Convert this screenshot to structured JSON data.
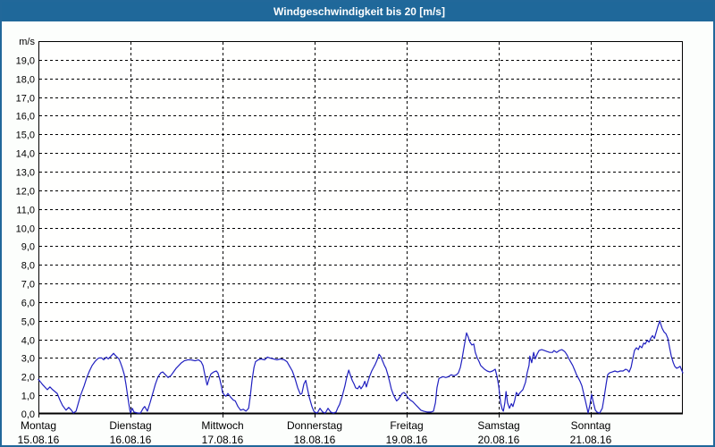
{
  "titlebar": {
    "title": "Windgeschwindigkeit bis 20 [m/s]"
  },
  "colors": {
    "titlebar_bg": "#1f689a",
    "titlebar_text": "#ffffff",
    "frame_border": "#21689a",
    "page_bg": "#fcfefc",
    "plot_bg": "#fffffe",
    "grid": "#000000",
    "line": "#2020c0"
  },
  "chart_data": {
    "type": "line",
    "title": "Windgeschwindigkeit bis 20 [m/s]",
    "ylabel": "m/s",
    "ylim": [
      0,
      20
    ],
    "ytick_step": 1,
    "ytick_labels": [
      "0,0",
      "1,0",
      "2,0",
      "3,0",
      "4,0",
      "5,0",
      "6,0",
      "7,0",
      "8,0",
      "9,0",
      "10,0",
      "11,0",
      "12,0",
      "13,0",
      "14,0",
      "15,0",
      "16,0",
      "17,0",
      "18,0",
      "19,0"
    ],
    "grid": true,
    "x_axis": {
      "unit": "hours since Monday 00:00",
      "range": [
        0,
        168
      ],
      "day_ticks": [
        {
          "name": "Montag",
          "date": "15.08.16"
        },
        {
          "name": "Dienstag",
          "date": "16.08.16"
        },
        {
          "name": "Mittwoch",
          "date": "17.08.16"
        },
        {
          "name": "Donnerstag",
          "date": "18.08.16"
        },
        {
          "name": "Freitag",
          "date": "19.08.16"
        },
        {
          "name": "Samstag",
          "date": "20.08.16"
        },
        {
          "name": "Sonntag",
          "date": "21.08.16"
        }
      ]
    },
    "series": [
      {
        "name": "Windgeschwindigkeit",
        "color": "#2020c0",
        "points": [
          [
            0,
            1.85
          ],
          [
            1.2,
            1.55
          ],
          [
            2.3,
            1.3
          ],
          [
            3,
            1.45
          ],
          [
            3.7,
            1.3
          ],
          [
            4.9,
            1.1
          ],
          [
            5.6,
            0.75
          ],
          [
            6.3,
            0.45
          ],
          [
            7.2,
            0.2
          ],
          [
            7.9,
            0.35
          ],
          [
            8.6,
            0.2
          ],
          [
            9.1,
            0.05
          ],
          [
            9.8,
            0.15
          ],
          [
            10.3,
            0.5
          ],
          [
            11,
            1
          ],
          [
            11.9,
            1.5
          ],
          [
            12.6,
            1.95
          ],
          [
            13.3,
            2.3
          ],
          [
            14,
            2.6
          ],
          [
            14.7,
            2.8
          ],
          [
            15.4,
            2.95
          ],
          [
            15.8,
            3
          ],
          [
            16.5,
            3
          ],
          [
            17,
            2.9
          ],
          [
            17.7,
            3.05
          ],
          [
            18.2,
            2.95
          ],
          [
            18.9,
            3.1
          ],
          [
            19.6,
            3.25
          ],
          [
            20,
            3.15
          ],
          [
            20.5,
            3.05
          ],
          [
            21,
            2.95
          ],
          [
            21.4,
            2.75
          ],
          [
            21.9,
            2.45
          ],
          [
            22.4,
            2.1
          ],
          [
            22.8,
            1.6
          ],
          [
            23.3,
            0.9
          ],
          [
            23.8,
            0.25
          ],
          [
            24,
            0.05
          ],
          [
            24.5,
            0.3
          ],
          [
            24.9,
            0.1
          ],
          [
            25.9,
            0.05
          ],
          [
            26.6,
            0.05
          ],
          [
            27.3,
            0.3
          ],
          [
            27.7,
            0.4
          ],
          [
            28.4,
            0.15
          ],
          [
            29.1,
            0.6
          ],
          [
            29.8,
            1.1
          ],
          [
            30.5,
            1.6
          ],
          [
            31.2,
            2
          ],
          [
            31.9,
            2.2
          ],
          [
            32.4,
            2.25
          ],
          [
            33.1,
            2.1
          ],
          [
            33.8,
            1.95
          ],
          [
            34.5,
            2.05
          ],
          [
            35.2,
            2.25
          ],
          [
            35.9,
            2.45
          ],
          [
            36.6,
            2.6
          ],
          [
            37.3,
            2.75
          ],
          [
            38,
            2.85
          ],
          [
            38.9,
            2.9
          ],
          [
            39.8,
            2.9
          ],
          [
            40.8,
            2.85
          ],
          [
            41.7,
            2.9
          ],
          [
            42.4,
            2.8
          ],
          [
            42.9,
            2.6
          ],
          [
            43.3,
            2.2
          ],
          [
            43.8,
            1.7
          ],
          [
            44,
            1.55
          ],
          [
            44.5,
            1.9
          ],
          [
            45,
            2.15
          ],
          [
            45.7,
            2.25
          ],
          [
            46.4,
            2.3
          ],
          [
            46.8,
            2.2
          ],
          [
            47.3,
            1.85
          ],
          [
            47.8,
            1.4
          ],
          [
            48,
            1.15
          ],
          [
            48.5,
            1
          ],
          [
            48.9,
            0.95
          ],
          [
            49.4,
            1.1
          ],
          [
            50.1,
            0.9
          ],
          [
            50.8,
            0.75
          ],
          [
            51.3,
            0.7
          ],
          [
            52,
            0.4
          ],
          [
            52.7,
            0.2
          ],
          [
            53.4,
            0.25
          ],
          [
            54.1,
            0.15
          ],
          [
            54.8,
            0.3
          ],
          [
            55.2,
            0.9
          ],
          [
            55.7,
            1.8
          ],
          [
            56.2,
            2.5
          ],
          [
            56.6,
            2.8
          ],
          [
            57.3,
            2.9
          ],
          [
            58,
            2.95
          ],
          [
            59,
            2.9
          ],
          [
            59.7,
            3.05
          ],
          [
            60.3,
            3
          ],
          [
            61.3,
            2.95
          ],
          [
            62.2,
            2.9
          ],
          [
            63.1,
            2.95
          ],
          [
            64.1,
            2.9
          ],
          [
            64.8,
            2.8
          ],
          [
            65.5,
            2.55
          ],
          [
            66.2,
            2.3
          ],
          [
            66.9,
            1.9
          ],
          [
            67.6,
            1.4
          ],
          [
            68.3,
            1.05
          ],
          [
            68.7,
            1.1
          ],
          [
            69.2,
            1.6
          ],
          [
            69.7,
            1.8
          ],
          [
            70.1,
            1.4
          ],
          [
            70.6,
            0.9
          ],
          [
            71.3,
            0.4
          ],
          [
            71.8,
            0.15
          ],
          [
            72,
            0.1
          ],
          [
            72.7,
            0.05
          ],
          [
            73.4,
            0.3
          ],
          [
            74.1,
            0.1
          ],
          [
            74.8,
            0.05
          ],
          [
            75.5,
            0.3
          ],
          [
            76.2,
            0.1
          ],
          [
            76.9,
            0.05
          ],
          [
            77.6,
            0.1
          ],
          [
            78.1,
            0.35
          ],
          [
            78.5,
            0.5
          ],
          [
            79.2,
            0.95
          ],
          [
            79.9,
            1.5
          ],
          [
            80.4,
            2
          ],
          [
            80.9,
            2.35
          ],
          [
            81.3,
            2.1
          ],
          [
            81.8,
            1.8
          ],
          [
            82.3,
            1.6
          ],
          [
            82.7,
            1.4
          ],
          [
            83.2,
            1.35
          ],
          [
            83.7,
            1.5
          ],
          [
            84.1,
            1.35
          ],
          [
            84.6,
            1.5
          ],
          [
            85.1,
            1.75
          ],
          [
            85.5,
            1.45
          ],
          [
            86,
            1.8
          ],
          [
            86.4,
            2.05
          ],
          [
            86.9,
            2.3
          ],
          [
            87.4,
            2.5
          ],
          [
            87.8,
            2.65
          ],
          [
            88.3,
            2.9
          ],
          [
            88.8,
            3.2
          ],
          [
            89.2,
            3.1
          ],
          [
            89.7,
            2.85
          ],
          [
            90.2,
            2.6
          ],
          [
            90.6,
            2.45
          ],
          [
            91.1,
            2.1
          ],
          [
            91.6,
            1.7
          ],
          [
            92,
            1.35
          ],
          [
            92.5,
            1.05
          ],
          [
            93,
            0.85
          ],
          [
            93.4,
            0.7
          ],
          [
            93.9,
            0.8
          ],
          [
            94.4,
            0.95
          ],
          [
            94.8,
            1.1
          ],
          [
            95.3,
            1.15
          ],
          [
            95.8,
            1.05
          ],
          [
            96.2,
            0.9
          ],
          [
            96.9,
            0.75
          ],
          [
            97.6,
            0.65
          ],
          [
            98.3,
            0.5
          ],
          [
            99,
            0.35
          ],
          [
            99.7,
            0.2
          ],
          [
            100.4,
            0.15
          ],
          [
            101.4,
            0.1
          ],
          [
            102.3,
            0.1
          ],
          [
            103,
            0.15
          ],
          [
            103.5,
            0.6
          ],
          [
            103.9,
            1.4
          ],
          [
            104.4,
            1.9
          ],
          [
            104.9,
            1.95
          ],
          [
            105.5,
            2
          ],
          [
            106.2,
            1.95
          ],
          [
            106.9,
            2
          ],
          [
            107.6,
            2.1
          ],
          [
            108.3,
            2.05
          ],
          [
            109,
            2.1
          ],
          [
            109.5,
            2.2
          ],
          [
            110,
            2.5
          ],
          [
            110.4,
            2.9
          ],
          [
            110.9,
            3.5
          ],
          [
            111.4,
            4.1
          ],
          [
            111.6,
            4.35
          ],
          [
            112.1,
            4.1
          ],
          [
            112.5,
            3.85
          ],
          [
            113,
            3.7
          ],
          [
            113.5,
            3.75
          ],
          [
            113.9,
            3.3
          ],
          [
            114.4,
            3
          ],
          [
            114.9,
            2.8
          ],
          [
            115.3,
            2.6
          ],
          [
            115.8,
            2.5
          ],
          [
            116.3,
            2.4
          ],
          [
            117,
            2.3
          ],
          [
            117.7,
            2.25
          ],
          [
            118.4,
            2.3
          ],
          [
            119.1,
            2.4
          ],
          [
            119.5,
            2.05
          ],
          [
            120,
            1.5
          ],
          [
            120.5,
            0.6
          ],
          [
            120.9,
            0.25
          ],
          [
            121.2,
            0.15
          ],
          [
            121.6,
            0.6
          ],
          [
            121.9,
            1.2
          ],
          [
            122.3,
            0.6
          ],
          [
            122.8,
            0.3
          ],
          [
            123.3,
            0.55
          ],
          [
            123.7,
            0.4
          ],
          [
            124.2,
            0.75
          ],
          [
            124.6,
            1.15
          ],
          [
            125.1,
            1
          ],
          [
            125.6,
            1.15
          ],
          [
            126.3,
            1.3
          ],
          [
            127,
            1.7
          ],
          [
            127.4,
            2.2
          ],
          [
            127.9,
            2.6
          ],
          [
            128.1,
            3.1
          ],
          [
            128.6,
            2.75
          ],
          [
            129.1,
            3.3
          ],
          [
            129.5,
            2.95
          ],
          [
            130,
            3.2
          ],
          [
            130.5,
            3.4
          ],
          [
            131.2,
            3.45
          ],
          [
            131.9,
            3.4
          ],
          [
            132.6,
            3.35
          ],
          [
            133.3,
            3.3
          ],
          [
            134,
            3.3
          ],
          [
            134.4,
            3.4
          ],
          [
            135.1,
            3.3
          ],
          [
            135.8,
            3.4
          ],
          [
            136.5,
            3.45
          ],
          [
            137.2,
            3.35
          ],
          [
            137.7,
            3.2
          ],
          [
            138.2,
            3
          ],
          [
            138.6,
            2.85
          ],
          [
            139.3,
            2.6
          ],
          [
            139.8,
            2.35
          ],
          [
            140.3,
            2.1
          ],
          [
            140.7,
            1.95
          ],
          [
            141.2,
            1.75
          ],
          [
            141.7,
            1.5
          ],
          [
            142.1,
            1.15
          ],
          [
            142.6,
            0.7
          ],
          [
            143.1,
            0.25
          ],
          [
            143.3,
            0.05
          ],
          [
            143.8,
            0.5
          ],
          [
            144.2,
            1.05
          ],
          [
            144.7,
            0.6
          ],
          [
            145.2,
            0.2
          ],
          [
            145.6,
            0.1
          ],
          [
            146.3,
            0.05
          ],
          [
            147,
            0.3
          ],
          [
            147.5,
            0.9
          ],
          [
            148,
            1.6
          ],
          [
            148.4,
            2.1
          ],
          [
            148.9,
            2.2
          ],
          [
            149.6,
            2.25
          ],
          [
            150.3,
            2.3
          ],
          [
            151,
            2.25
          ],
          [
            151.7,
            2.3
          ],
          [
            152.4,
            2.3
          ],
          [
            153.1,
            2.4
          ],
          [
            153.6,
            2.35
          ],
          [
            154,
            2.25
          ],
          [
            154.5,
            2.5
          ],
          [
            155,
            3
          ],
          [
            155.4,
            3.4
          ],
          [
            155.9,
            3.55
          ],
          [
            156.4,
            3.45
          ],
          [
            156.8,
            3.65
          ],
          [
            157.3,
            3.55
          ],
          [
            157.8,
            3.8
          ],
          [
            158.2,
            3.75
          ],
          [
            158.7,
            3.95
          ],
          [
            159.2,
            3.85
          ],
          [
            159.6,
            4.05
          ],
          [
            160.1,
            4.2
          ],
          [
            160.6,
            4.05
          ],
          [
            161,
            4.35
          ],
          [
            161.5,
            4.7
          ],
          [
            162,
            5
          ],
          [
            162.2,
            4.85
          ],
          [
            162.6,
            4.6
          ],
          [
            163.1,
            4.4
          ],
          [
            163.6,
            4.3
          ],
          [
            164.1,
            4.05
          ],
          [
            164.5,
            3.6
          ],
          [
            165,
            3.1
          ],
          [
            165.5,
            2.75
          ],
          [
            165.9,
            2.55
          ],
          [
            166.4,
            2.45
          ],
          [
            166.9,
            2.5
          ],
          [
            167.3,
            2.55
          ],
          [
            167.6,
            2.4
          ],
          [
            168,
            2.2
          ]
        ]
      }
    ]
  }
}
